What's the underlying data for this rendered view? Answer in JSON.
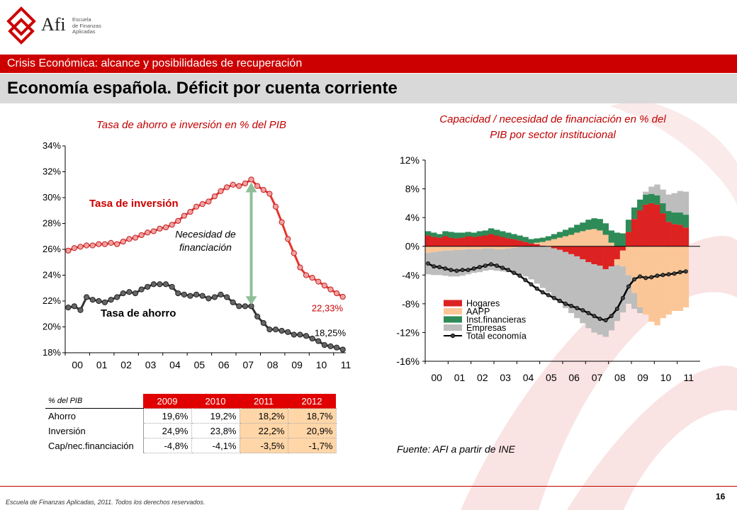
{
  "logo": {
    "brand": "Afi",
    "sub": [
      "Escuela",
      "de Finanzas",
      "Aplicadas"
    ]
  },
  "banner": "Crisis Económica: alcance y posibilidades de recuperación",
  "title": "Economía española. Déficit por cuenta corriente",
  "left_title": "Tasa de ahorro e inversión en % del PIB",
  "right_title_lines": [
    "Capacidad / necesidad de financiación en % del",
    "PIB por sector institucional"
  ],
  "colors": {
    "red": "#cc0000",
    "investment": "#e8332d",
    "saving": "#555555",
    "arrow": "#8fbf9a"
  },
  "chart_data": [
    {
      "type": "line",
      "title": "Tasa de ahorro e inversión en % del PIB",
      "ylim": [
        18,
        34
      ],
      "yticks": [
        "18%",
        "20%",
        "22%",
        "24%",
        "26%",
        "28%",
        "30%",
        "32%",
        "34%"
      ],
      "xticks": [
        "00",
        "01",
        "02",
        "03",
        "04",
        "05",
        "06",
        "07",
        "08",
        "09",
        "10",
        "11"
      ],
      "x_start": 2000,
      "annotations": {
        "inversion": "Tasa de inversión",
        "ahorro": "Tasa de ahorro",
        "necesidad": [
          "Necesidad de",
          "financiación"
        ],
        "last_inv": "22,33%",
        "last_ah": "18,25%"
      },
      "series": [
        {
          "name": "Tasa de inversión",
          "values": [
            25.9,
            26.1,
            26.2,
            26.3,
            26.3,
            26.4,
            26.4,
            26.5,
            26.4,
            26.6,
            26.8,
            26.9,
            27.1,
            27.3,
            27.4,
            27.6,
            27.7,
            27.9,
            28.2,
            28.6,
            28.9,
            29.3,
            29.5,
            29.7,
            30.1,
            30.5,
            30.8,
            31.0,
            30.9,
            31.1,
            31.4,
            30.9,
            30.6,
            30.3,
            29.3,
            28.1,
            26.8,
            25.7,
            24.6,
            24.0,
            23.8,
            23.5,
            23.2,
            22.9,
            22.6,
            22.33
          ]
        },
        {
          "name": "Tasa de ahorro",
          "values": [
            21.5,
            21.6,
            21.3,
            22.3,
            22.1,
            22.0,
            21.9,
            22.1,
            22.3,
            22.6,
            22.7,
            22.6,
            22.9,
            23.1,
            23.3,
            23.3,
            23.3,
            23.1,
            22.6,
            22.5,
            22.4,
            22.5,
            22.4,
            22.2,
            22.3,
            22.5,
            22.3,
            21.9,
            21.6,
            21.6,
            21.6,
            20.8,
            20.3,
            19.8,
            19.8,
            19.7,
            19.6,
            19.4,
            19.4,
            19.3,
            19.1,
            18.9,
            18.6,
            18.5,
            18.4,
            18.25
          ]
        }
      ]
    },
    {
      "type": "bar",
      "title": "Capacidad / necesidad de financiación en % del PIB por sector institucional",
      "ylim": [
        -16,
        12
      ],
      "yticks": [
        "-16%",
        "-12%",
        "-8%",
        "-4%",
        "0%",
        "4%",
        "8%",
        "12%"
      ],
      "xticks": [
        "00",
        "01",
        "02",
        "03",
        "04",
        "05",
        "06",
        "07",
        "08",
        "09",
        "10",
        "11"
      ],
      "legend_position": "bottom-left",
      "series": [
        {
          "name": "Hogares",
          "color": "#dd2222",
          "values": [
            1.5,
            1.3,
            1.2,
            1.4,
            1.2,
            1.1,
            1.2,
            1.4,
            1.3,
            1.4,
            1.5,
            1.7,
            1.5,
            1.3,
            1.1,
            1.0,
            0.8,
            0.6,
            0.4,
            0.3,
            0.1,
            0,
            -0.3,
            -0.5,
            -0.8,
            -1.1,
            -1.4,
            -1.8,
            -2.2,
            -2.5,
            -2.7,
            -3.2,
            -2.8,
            -1.8,
            -0.6,
            2.0,
            3.8,
            5.0,
            5.8,
            6.0,
            5.8,
            4.6,
            3.4,
            3.1,
            3.0,
            2.6
          ]
        },
        {
          "name": "AAPP",
          "color": "#fbc697",
          "values": [
            -0.9,
            -0.8,
            -0.7,
            -0.6,
            -0.6,
            -0.5,
            -0.5,
            -0.4,
            -0.4,
            -0.4,
            -0.3,
            -0.3,
            -0.4,
            -0.4,
            -0.3,
            -0.2,
            -0.1,
            0,
            0,
            0.2,
            0.5,
            0.8,
            1.0,
            1.2,
            1.4,
            1.6,
            1.9,
            2.1,
            2.3,
            2.4,
            2.2,
            1.6,
            0.5,
            -0.8,
            -2.2,
            -4.0,
            -6.5,
            -8.5,
            -9.5,
            -10.5,
            -11.0,
            -10.0,
            -9.5,
            -9.0,
            -9.0,
            -8.5
          ]
        },
        {
          "name": "Inst.financieras",
          "color": "#2e8b57",
          "values": [
            0.6,
            0.6,
            0.5,
            0.7,
            0.8,
            0.8,
            0.7,
            0.6,
            0.6,
            0.7,
            0.7,
            0.8,
            0.8,
            0.8,
            0.8,
            0.7,
            0.7,
            0.7,
            0.6,
            0.6,
            0.6,
            0.6,
            0.7,
            0.8,
            0.9,
            1.0,
            1.1,
            1.2,
            1.4,
            1.5,
            1.6,
            1.6,
            1.7,
            1.9,
            1.8,
            1.7,
            1.6,
            1.5,
            1.4,
            1.3,
            1.3,
            1.4,
            1.5,
            1.6,
            1.7,
            1.8
          ]
        },
        {
          "name": "Empresas",
          "color": "#bdbdbd",
          "values": [
            -3.0,
            -3.2,
            -3.3,
            -3.5,
            -3.6,
            -3.7,
            -3.6,
            -3.5,
            -3.3,
            -3.2,
            -3.1,
            -3.0,
            -3.0,
            -3.1,
            -3.3,
            -3.6,
            -3.8,
            -4.2,
            -4.6,
            -5.2,
            -5.8,
            -6.4,
            -6.9,
            -7.4,
            -7.8,
            -8.2,
            -8.6,
            -8.9,
            -9.2,
            -9.5,
            -9.6,
            -9.4,
            -8.9,
            -7.8,
            -6.4,
            -4.0,
            -2.2,
            -0.8,
            0.4,
            1.0,
            1.5,
            1.9,
            2.3,
            2.7,
            3.0,
            3.2
          ]
        },
        {
          "name": "Total economía",
          "color": "#000000",
          "kind": "line",
          "values": [
            -2.4,
            -2.8,
            -2.9,
            -3.1,
            -3.3,
            -3.4,
            -3.3,
            -3.3,
            -3.1,
            -2.9,
            -2.7,
            -2.5,
            -2.7,
            -3.0,
            -3.3,
            -3.7,
            -4.1,
            -4.7,
            -5.3,
            -5.9,
            -6.4,
            -6.8,
            -7.2,
            -7.6,
            -8.0,
            -8.3,
            -8.6,
            -8.9,
            -9.3,
            -9.7,
            -10.1,
            -10.3,
            -9.7,
            -8.7,
            -7.2,
            -5.6,
            -4.6,
            -4.2,
            -4.4,
            -4.3,
            -4.1,
            -4.0,
            -3.9,
            -3.8,
            -3.6,
            -3.5
          ]
        }
      ]
    }
  ],
  "table": {
    "header": [
      "% del PIB",
      "2009",
      "2010",
      "2011",
      "2012"
    ],
    "rows": [
      {
        "label": "Ahorro",
        "values": [
          "19,6%",
          "19,2%",
          "18,2%",
          "18,7%"
        ]
      },
      {
        "label": "Inversión",
        "values": [
          "24,9%",
          "23,8%",
          "22,2%",
          "20,9%"
        ]
      },
      {
        "label": "Cap/nec.financiación",
        "values": [
          "-4,8%",
          "-4,1%",
          "-3,5%",
          "-1,7%"
        ]
      }
    ]
  },
  "fuente": "Fuente: AFI a partir de INE",
  "footer": "Escuela de Finanzas Aplicadas, 2011. Todos los derechos reservados.",
  "page_number": "16"
}
